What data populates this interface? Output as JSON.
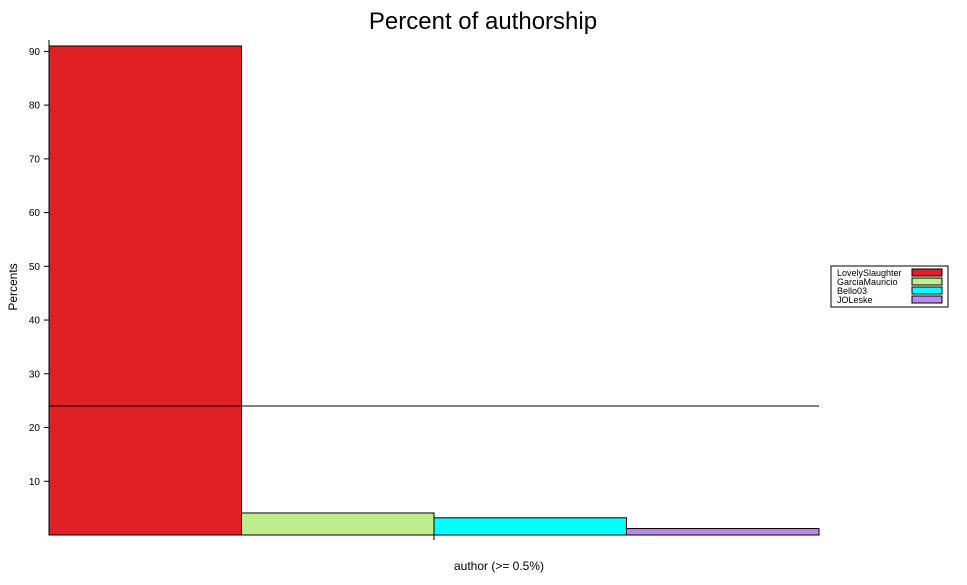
{
  "chart_data": {
    "type": "bar",
    "title": "Percent of authorship",
    "xlabel": "author (>= 0.5%)",
    "ylabel": "Percents",
    "ylim": [
      0,
      92
    ],
    "yticks": [
      10,
      20,
      30,
      40,
      50,
      60,
      70,
      80,
      90
    ],
    "categories": [
      "LovelySlaughter",
      "GarciaMauricio",
      "Bello03",
      "JOLeske"
    ],
    "values": [
      91,
      4.1,
      3.2,
      1.2
    ],
    "colors": [
      "#e12025",
      "#c0ed8b",
      "#00ffff",
      "#b88ced"
    ],
    "reference_line": 24,
    "legend": {
      "position": "right",
      "entries": [
        "LovelySlaughter",
        "GarciaMauricio",
        "Bello03",
        "JOLeske"
      ]
    },
    "grid": false
  }
}
